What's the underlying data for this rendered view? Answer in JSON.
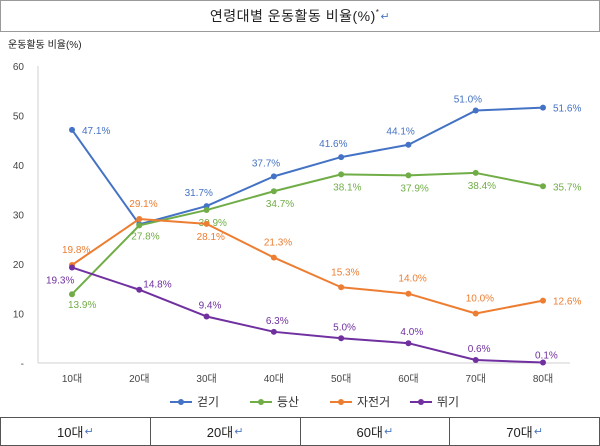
{
  "title": {
    "text": "연령대별 운동활동 비율(%)",
    "superscript": "*",
    "para_mark": "↵"
  },
  "chart_data": {
    "type": "line",
    "ylabel": "운동활동 비율(%)",
    "ylim": [
      0,
      60
    ],
    "yticks": [
      0,
      10,
      20,
      30,
      40,
      50,
      60
    ],
    "ytick_labels": [
      "-",
      "10",
      "20",
      "30",
      "40",
      "50",
      "60"
    ],
    "categories": [
      "10대",
      "20대",
      "30대",
      "40대",
      "50대",
      "60대",
      "70대",
      "80대"
    ],
    "grid": false,
    "legend_position": "bottom",
    "series": [
      {
        "name": "걷기",
        "color": "#4472c4",
        "values": [
          47.1,
          28,
          31.7,
          37.7,
          41.6,
          44.1,
          51.0,
          51.6
        ],
        "labels": [
          "47.1%",
          "",
          "31.7%",
          "37.7%",
          "41.6%",
          "44.1%",
          "51.0%",
          "51.6%"
        ]
      },
      {
        "name": "등산",
        "color": "#70ad47",
        "values": [
          13.9,
          27.8,
          30.9,
          34.7,
          38.1,
          37.9,
          38.4,
          35.7
        ],
        "labels": [
          "13.9%",
          "27.8%",
          "30.9%",
          "34.7%",
          "38.1%",
          "37.9%",
          "38.4%",
          "35.7%"
        ]
      },
      {
        "name": "자전거",
        "color": "#ed7d31",
        "values": [
          19.8,
          29.1,
          28.1,
          21.3,
          15.3,
          14.0,
          10.0,
          12.6
        ],
        "labels": [
          "19.8%",
          "29.1%",
          "28.1%",
          "21.3%",
          "15.3%",
          "14.0%",
          "10.0%",
          "12.6%"
        ]
      },
      {
        "name": "뛰기",
        "color": "#7030a0",
        "values": [
          19.3,
          14.8,
          9.4,
          6.3,
          5.0,
          4.0,
          0.6,
          0.1
        ],
        "labels": [
          "19.3%",
          "14.8%",
          "9.4%",
          "6.3%",
          "5.0%",
          "4.0%",
          "0.6%",
          "0.1%"
        ]
      }
    ]
  },
  "bottom_row": [
    {
      "label": "10대",
      "mark": "↵"
    },
    {
      "label": "20대",
      "mark": "↵"
    },
    {
      "label": "60대",
      "mark": "↵"
    },
    {
      "label": "70대",
      "mark": "↵"
    }
  ]
}
